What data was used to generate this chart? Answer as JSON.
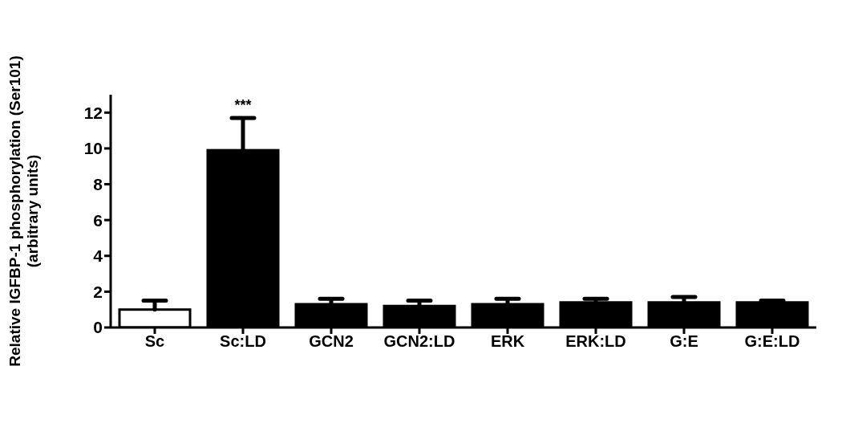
{
  "chart_data": {
    "type": "bar",
    "ylabel": "Relative IGFBP-1 phosphorylation (Ser101)\n(arbitrary units)",
    "categories": [
      "Sc",
      "Sc:LD",
      "GCN2",
      "GCN2:LD",
      "ERK",
      "ERK:LD",
      "G:E",
      "G:E:LD"
    ],
    "values": [
      1.0,
      9.9,
      1.3,
      1.2,
      1.3,
      1.4,
      1.4,
      1.4
    ],
    "errors": [
      [
        1.0,
        1.5
      ],
      [
        9.9,
        11.7
      ],
      [
        1.3,
        1.6
      ],
      [
        1.2,
        1.5
      ],
      [
        1.3,
        1.6
      ],
      [
        1.4,
        1.6
      ],
      [
        1.4,
        1.7
      ],
      [
        1.4,
        1.5
      ]
    ],
    "colors": [
      "#ffffff",
      "#000000",
      "#000000",
      "#000000",
      "#000000",
      "#000000",
      "#000000",
      "#000000"
    ],
    "ylim": [
      0,
      13
    ],
    "yticks": [
      0,
      2,
      4,
      6,
      8,
      10,
      12
    ],
    "grid": false,
    "legend": false,
    "annotations": [
      "***"
    ]
  }
}
